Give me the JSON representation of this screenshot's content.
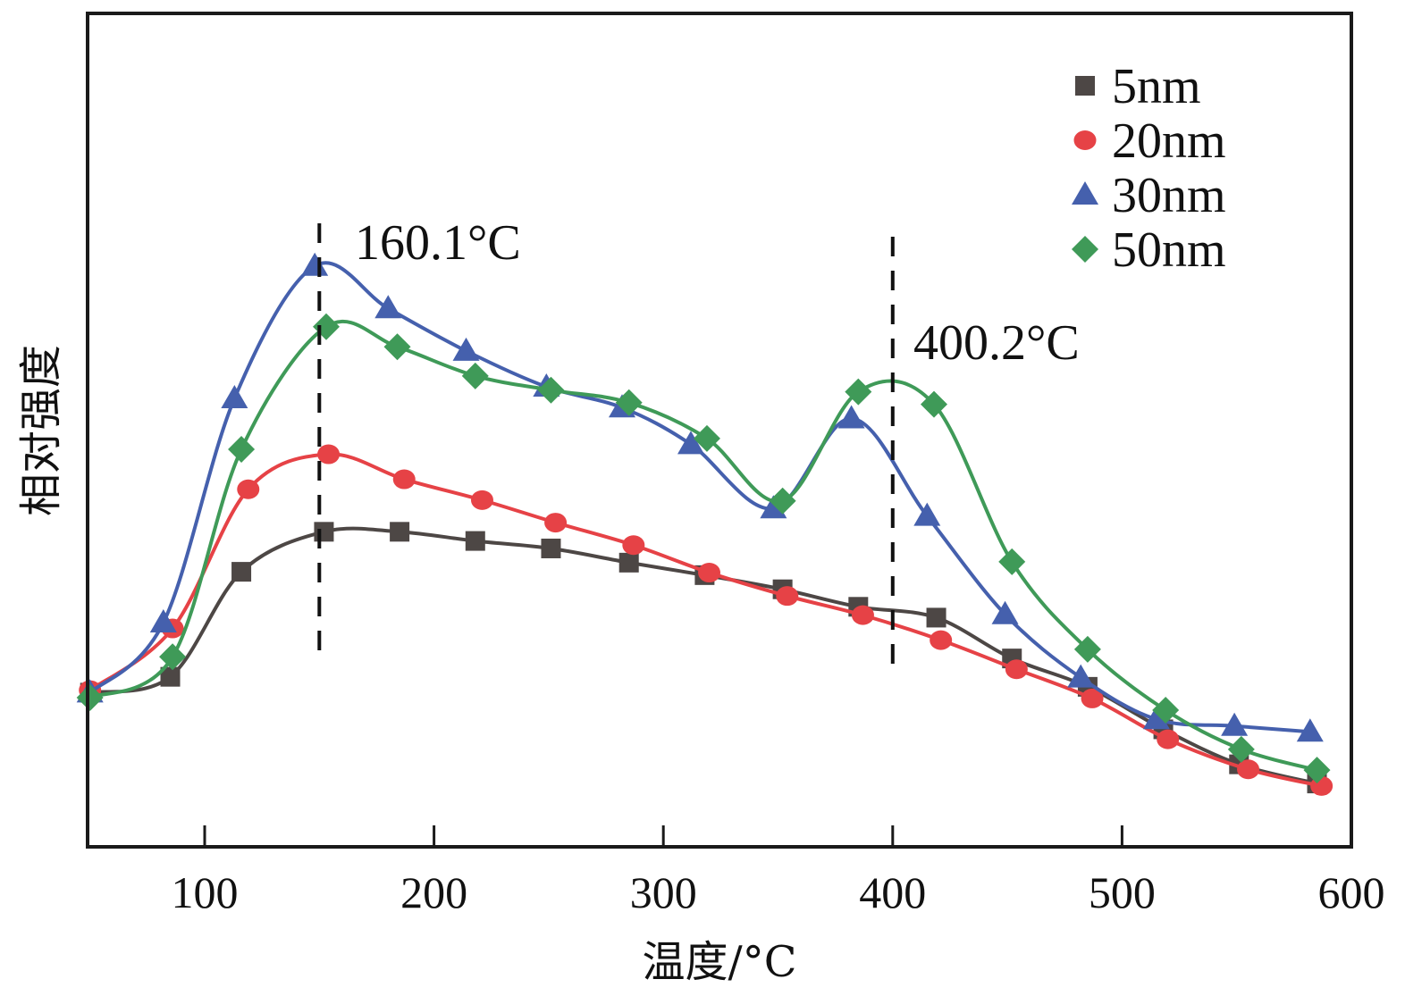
{
  "chart_data": {
    "type": "line",
    "title": "",
    "xlabel": "温度/°C",
    "ylabel": "相对强度",
    "xlim": [
      49,
      600
    ],
    "ylim": [
      0,
      100
    ],
    "x_ticks": [
      100,
      200,
      300,
      400,
      500,
      600
    ],
    "x_tick_labels": [
      "100",
      "200",
      "300",
      "400",
      "500",
      "600"
    ],
    "y_ticks_shown": false,
    "grid": false,
    "legend_position": "top-right",
    "annotations": [
      {
        "text": "160.1°C",
        "x": 150,
        "type": "vertical-dashed-line"
      },
      {
        "text": "400.2°C",
        "x": 400,
        "type": "vertical-dashed-line"
      }
    ],
    "series": [
      {
        "name": "5nm",
        "color": "#4d4745",
        "marker": "square",
        "x": [
          50,
          85,
          116,
          152,
          185,
          218,
          251,
          285,
          318,
          352,
          385,
          419,
          452,
          485,
          518,
          551,
          585
        ],
        "y": [
          18.5,
          20.4,
          33.0,
          37.8,
          37.8,
          36.7,
          35.8,
          34.1,
          32.6,
          30.9,
          28.8,
          27.5,
          22.6,
          19.2,
          14.1,
          9.9,
          7.6
        ]
      },
      {
        "name": "20nm",
        "color": "#e64246",
        "marker": "circle",
        "x": [
          50,
          86,
          119,
          154,
          187,
          221,
          253,
          287,
          320,
          354,
          387,
          421,
          454,
          487,
          520,
          555,
          587
        ],
        "y": [
          18.8,
          26.2,
          42.9,
          47.1,
          44.1,
          41.6,
          38.9,
          36.2,
          32.9,
          30.1,
          27.8,
          24.8,
          21.3,
          17.8,
          12.9,
          9.3,
          7.3
        ]
      },
      {
        "name": "30nm",
        "color": "#4560ad",
        "marker": "triangle",
        "x": [
          50,
          82,
          113,
          148,
          180,
          214,
          249,
          282,
          312,
          348,
          382,
          415,
          449,
          482,
          515,
          549,
          582
        ],
        "y": [
          18.5,
          26.9,
          53.8,
          69.7,
          64.6,
          59.5,
          55.2,
          52.7,
          48.3,
          40.6,
          51.4,
          39.7,
          27.9,
          20.3,
          15.3,
          14.5,
          13.8
        ]
      },
      {
        "name": "50nm",
        "color": "#3f9a58",
        "marker": "diamond",
        "x": [
          50,
          86,
          116,
          153,
          184,
          218,
          251,
          285,
          319,
          352,
          385,
          418,
          452,
          485,
          519,
          552,
          585
        ],
        "y": [
          17.9,
          22.8,
          47.7,
          62.4,
          60.0,
          56.5,
          54.8,
          53.3,
          49.0,
          41.5,
          54.6,
          53.1,
          34.2,
          23.7,
          16.4,
          11.7,
          9.2
        ]
      }
    ]
  }
}
